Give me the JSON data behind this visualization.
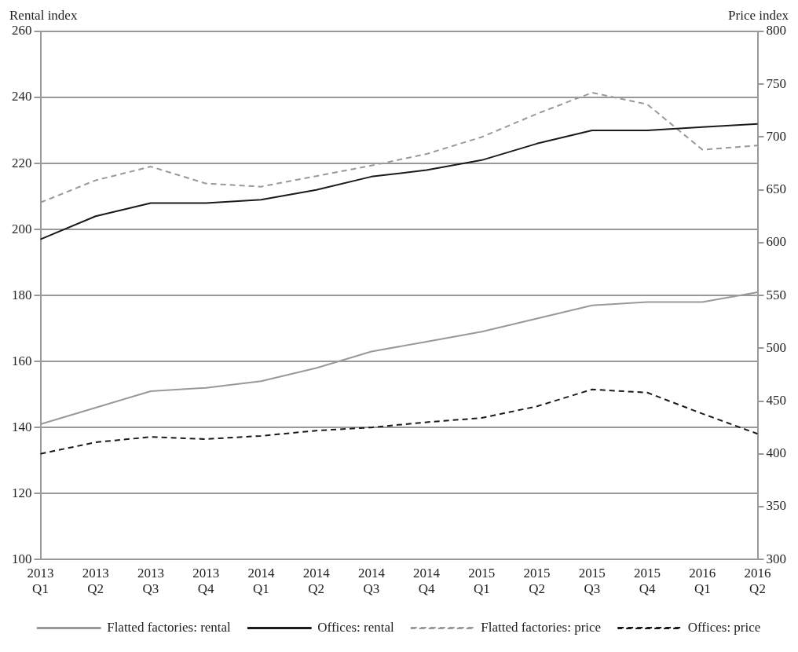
{
  "chart_data": {
    "type": "line",
    "ylabel": "Rental index",
    "y2label": "Price index",
    "categories": [
      "2013 Q1",
      "2013 Q2",
      "2013 Q3",
      "2013 Q4",
      "2014 Q1",
      "2014 Q2",
      "2014 Q3",
      "2014 Q4",
      "2015 Q1",
      "2015 Q2",
      "2015 Q3",
      "2015 Q4",
      "2016 Q1",
      "2016 Q2"
    ],
    "series": [
      {
        "name": "Flatted factories: rental",
        "color": "#999999",
        "line_style": "solid",
        "values": [
          141,
          146,
          151,
          152,
          154,
          158,
          163,
          166,
          169,
          173,
          177,
          178,
          178,
          181
        ]
      },
      {
        "name": "Offices: rental",
        "color": "#1a1a1a",
        "line_style": "solid",
        "values": [
          197,
          204,
          208,
          208,
          209,
          212,
          216,
          218,
          221,
          226,
          230,
          230,
          231,
          232
        ]
      },
      {
        "name": "Flatted factories: price",
        "color": "#999999",
        "line_style": "dashed",
        "axis": "y2",
        "values": [
          638,
          659,
          672,
          656,
          653,
          663,
          673,
          684,
          700,
          722,
          742,
          731,
          688,
          692
        ]
      },
      {
        "name": "Offices: price",
        "color": "#1a1a1a",
        "line_style": "dashed",
        "axis": "y2",
        "values": [
          400,
          411,
          416,
          414,
          417,
          422,
          425,
          430,
          434,
          445,
          461,
          458,
          438,
          419
        ]
      }
    ],
    "ylim": [
      100,
      260
    ],
    "yticks": [
      100,
      120,
      140,
      160,
      180,
      200,
      220,
      240,
      260
    ],
    "y2lim": [
      300,
      800
    ],
    "y2ticks": [
      300,
      350,
      400,
      450,
      500,
      550,
      600,
      650,
      700,
      750,
      800
    ],
    "grid": "y",
    "legend": "bottom",
    "marker": "none"
  }
}
